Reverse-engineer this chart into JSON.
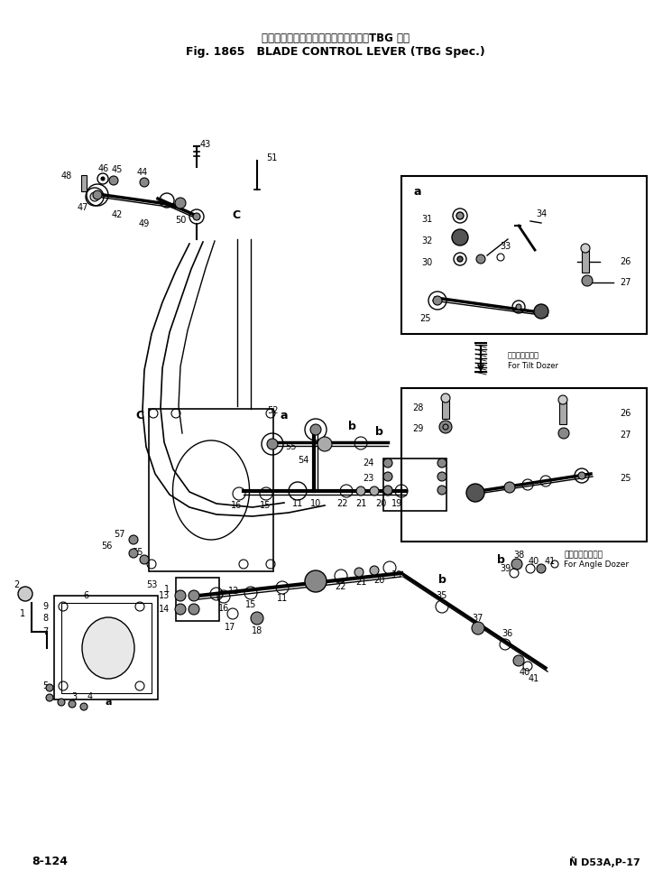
{
  "title_japanese": "ブレード　コントロール　レバー　　TBG 仕様",
  "title_english": "Fig. 1865   BLADE CONTROL LEVER (TBG Spec.)",
  "footer_left": "8-124",
  "footer_right": "Ñ D53A,P-17",
  "bg_color": "#ffffff",
  "box_tilt_label_jp": "チルトドーザ用",
  "box_tilt_label": "For Tilt Dozer",
  "box_angle_label_jp": "アングルドーザ用",
  "box_angle_label": "For Angle Dozer"
}
